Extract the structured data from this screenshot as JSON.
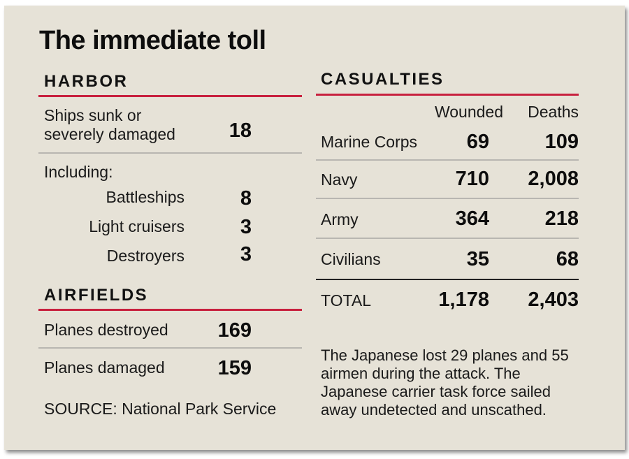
{
  "title": "The immediate toll",
  "harbor": {
    "heading": "HARBOR",
    "ships_label_line1": "Ships sunk or",
    "ships_label_line2": "severely damaged",
    "ships_value": "18",
    "including_label": "Including:",
    "items": [
      {
        "label": "Battleships",
        "value": "8"
      },
      {
        "label": "Light cruisers",
        "value": "3"
      },
      {
        "label": "Destroyers",
        "value": "3"
      }
    ]
  },
  "airfields": {
    "heading": "AIRFIELDS",
    "items": [
      {
        "label": "Planes destroyed",
        "value": "169"
      },
      {
        "label": "Planes damaged",
        "value": "159"
      }
    ]
  },
  "source": "SOURCE: National Park Service",
  "casualties": {
    "heading": "CASUALTIES",
    "col_wounded": "Wounded",
    "col_deaths": "Deaths",
    "rows": [
      {
        "label": "Marine Corps",
        "wounded": "69",
        "deaths": "109"
      },
      {
        "label": "Navy",
        "wounded": "710",
        "deaths": "2,008"
      },
      {
        "label": "Army",
        "wounded": "364",
        "deaths": "218"
      },
      {
        "label": "Civilians",
        "wounded": "35",
        "deaths": "68"
      }
    ],
    "total": {
      "label": "TOTAL",
      "wounded": "1,178",
      "deaths": "2,403"
    }
  },
  "note": "The Japanese lost 29 planes and 55 airmen during the attack. The Japanese carrier task force sailed away undetected and unscathed.",
  "colors": {
    "background": "#e6e2d7",
    "accent_rule": "#c8203e",
    "divider": "#b8b6b1"
  },
  "chart_data": [
    {
      "type": "table",
      "title": "HARBOR",
      "rows": [
        {
          "label": "Ships sunk or severely damaged",
          "value": 18
        },
        {
          "label": "Battleships",
          "value": 8
        },
        {
          "label": "Light cruisers",
          "value": 3
        },
        {
          "label": "Destroyers",
          "value": 3
        }
      ]
    },
    {
      "type": "table",
      "title": "AIRFIELDS",
      "rows": [
        {
          "label": "Planes destroyed",
          "value": 169
        },
        {
          "label": "Planes damaged",
          "value": 159
        }
      ]
    },
    {
      "type": "table",
      "title": "CASUALTIES",
      "columns": [
        "Wounded",
        "Deaths"
      ],
      "rows": [
        {
          "label": "Marine Corps",
          "values": [
            69,
            109
          ]
        },
        {
          "label": "Navy",
          "values": [
            710,
            2008
          ]
        },
        {
          "label": "Army",
          "values": [
            364,
            218
          ]
        },
        {
          "label": "Civilians",
          "values": [
            35,
            68
          ]
        },
        {
          "label": "TOTAL",
          "values": [
            1178,
            2403
          ]
        }
      ]
    }
  ]
}
